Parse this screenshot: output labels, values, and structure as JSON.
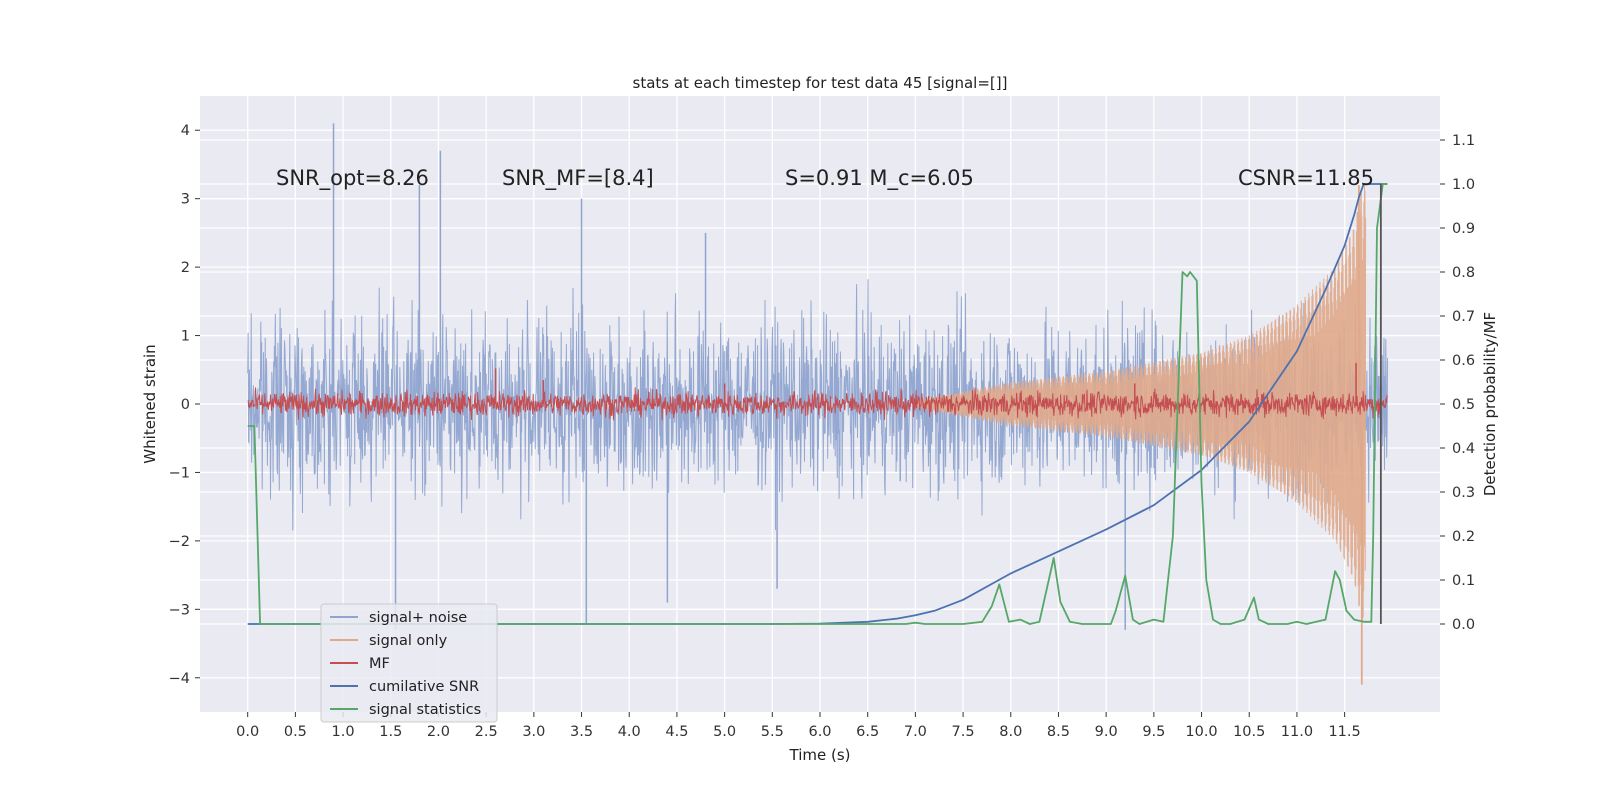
{
  "chart_data": {
    "type": "line",
    "title": "stats at each timestep for test data 45 [signal=[]]",
    "xlabel": "Time (s)",
    "ylabel_left": "Whitened strain",
    "ylabel_right": "Detection probability/MF",
    "xlim": [
      -0.5,
      12.5
    ],
    "ylim_left": [
      -4.5,
      4.5
    ],
    "ylim_right": [
      -0.2,
      1.2
    ],
    "x_ticks": [
      "0.0",
      "0.5",
      "1.0",
      "1.5",
      "2.0",
      "2.5",
      "3.0",
      "3.5",
      "4.0",
      "4.5",
      "5.0",
      "5.5",
      "6.0",
      "6.5",
      "7.0",
      "7.5",
      "8.0",
      "8.5",
      "9.0",
      "9.5",
      "10.0",
      "10.5",
      "11.0",
      "11.5"
    ],
    "y_ticks_left": [
      "4",
      "3",
      "2",
      "1",
      "0",
      "−1",
      "−2",
      "−3",
      "−4"
    ],
    "y_ticks_right": [
      "1.1",
      "1.0",
      "0.9",
      "0.8",
      "0.7",
      "0.6",
      "0.5",
      "0.4",
      "0.3",
      "0.2",
      "0.1",
      "0.0"
    ],
    "grid": true,
    "legend_position": "lower-left",
    "annotations": {
      "snr_opt": "SNR_opt=8.26",
      "snr_mf": "SNR_MF=[8.4]",
      "s_mc": "S=0.91   M_c=6.05",
      "csnr": "CSNR=11.85"
    },
    "series": [
      {
        "name": "signal+ noise",
        "axis": "left",
        "color": "#8fa4cf",
        "kind": "noise",
        "x_range": [
          0,
          11.95
        ],
        "envelope_std": 0.62,
        "peaks": [
          [
            0.9,
            4.1
          ],
          [
            2.02,
            3.7
          ],
          [
            1.8,
            3.2
          ],
          [
            3.5,
            3.0
          ],
          [
            4.8,
            2.5
          ],
          [
            1.55,
            -3.3
          ],
          [
            3.55,
            -3.2
          ],
          [
            9.2,
            -3.3
          ],
          [
            4.4,
            -2.9
          ],
          [
            5.55,
            -2.7
          ]
        ]
      },
      {
        "name": "signal only",
        "axis": "left",
        "color": "#e0a98a",
        "kind": "chirp",
        "x_range": [
          7.0,
          11.72
        ],
        "amplitude_points": [
          [
            7.0,
            0.05
          ],
          [
            8.0,
            0.32
          ],
          [
            9.0,
            0.48
          ],
          [
            10.0,
            0.75
          ],
          [
            10.5,
            1.0
          ],
          [
            11.0,
            1.45
          ],
          [
            11.4,
            2.0
          ],
          [
            11.6,
            2.6
          ],
          [
            11.68,
            3.2
          ]
        ],
        "extremes": [
          [
            11.65,
            3.2
          ],
          [
            11.68,
            -4.1
          ]
        ]
      },
      {
        "name": "MF",
        "axis": "left",
        "color": "#c44e52",
        "kind": "noise",
        "x_range": [
          0,
          11.95
        ],
        "envelope_std": 0.09,
        "peaks": [
          [
            2.6,
            0.52
          ],
          [
            11.62,
            0.6
          ],
          [
            9.3,
            0.3
          ],
          [
            3.1,
            0.35
          ],
          [
            5.0,
            0.3
          ]
        ]
      },
      {
        "name": "cumilative SNR",
        "axis": "right",
        "color": "#4c72b0",
        "x": [
          0,
          5.5,
          6.0,
          6.5,
          6.8,
          7.0,
          7.2,
          7.5,
          8.0,
          8.5,
          9.0,
          9.5,
          10.0,
          10.5,
          11.0,
          11.3,
          11.5,
          11.6,
          11.65,
          11.7,
          11.95
        ],
        "y": [
          0.0,
          0.0,
          0.001,
          0.005,
          0.012,
          0.02,
          0.03,
          0.055,
          0.115,
          0.165,
          0.215,
          0.27,
          0.35,
          0.46,
          0.62,
          0.76,
          0.86,
          0.93,
          0.97,
          1.0,
          1.0
        ]
      },
      {
        "name": "signal statistics",
        "axis": "right",
        "color": "#55a868",
        "x": [
          0,
          0.07,
          0.13,
          6.9,
          7.0,
          7.1,
          7.5,
          7.7,
          7.8,
          7.88,
          7.98,
          8.1,
          8.2,
          8.3,
          8.45,
          8.52,
          8.62,
          8.75,
          9.05,
          9.1,
          9.2,
          9.28,
          9.35,
          9.5,
          9.6,
          9.7,
          9.8,
          9.85,
          9.88,
          9.95,
          10.0,
          10.05,
          10.12,
          10.2,
          10.3,
          10.45,
          10.55,
          10.6,
          10.7,
          10.9,
          11.0,
          11.1,
          11.3,
          11.4,
          11.45,
          11.52,
          11.6,
          11.7,
          11.78,
          11.8,
          11.84,
          11.9,
          11.95
        ],
        "y": [
          0.45,
          0.45,
          0.0,
          0.0,
          0.003,
          0.0,
          0.0,
          0.005,
          0.04,
          0.09,
          0.005,
          0.01,
          0.0,
          0.005,
          0.15,
          0.05,
          0.005,
          0.0,
          0.0,
          0.03,
          0.11,
          0.01,
          0.0,
          0.01,
          0.005,
          0.2,
          0.8,
          0.79,
          0.8,
          0.78,
          0.32,
          0.1,
          0.01,
          0.0,
          0.0,
          0.01,
          0.06,
          0.01,
          0.0,
          0.0,
          0.005,
          0.0,
          0.01,
          0.12,
          0.1,
          0.03,
          0.01,
          0.005,
          0.005,
          0.2,
          0.9,
          1.0,
          1.0
        ]
      },
      {
        "name": "",
        "axis": "right",
        "color": "#555555",
        "kind": "vline",
        "x": [
          11.88,
          11.88
        ],
        "y": [
          0.0,
          1.0
        ]
      }
    ]
  }
}
